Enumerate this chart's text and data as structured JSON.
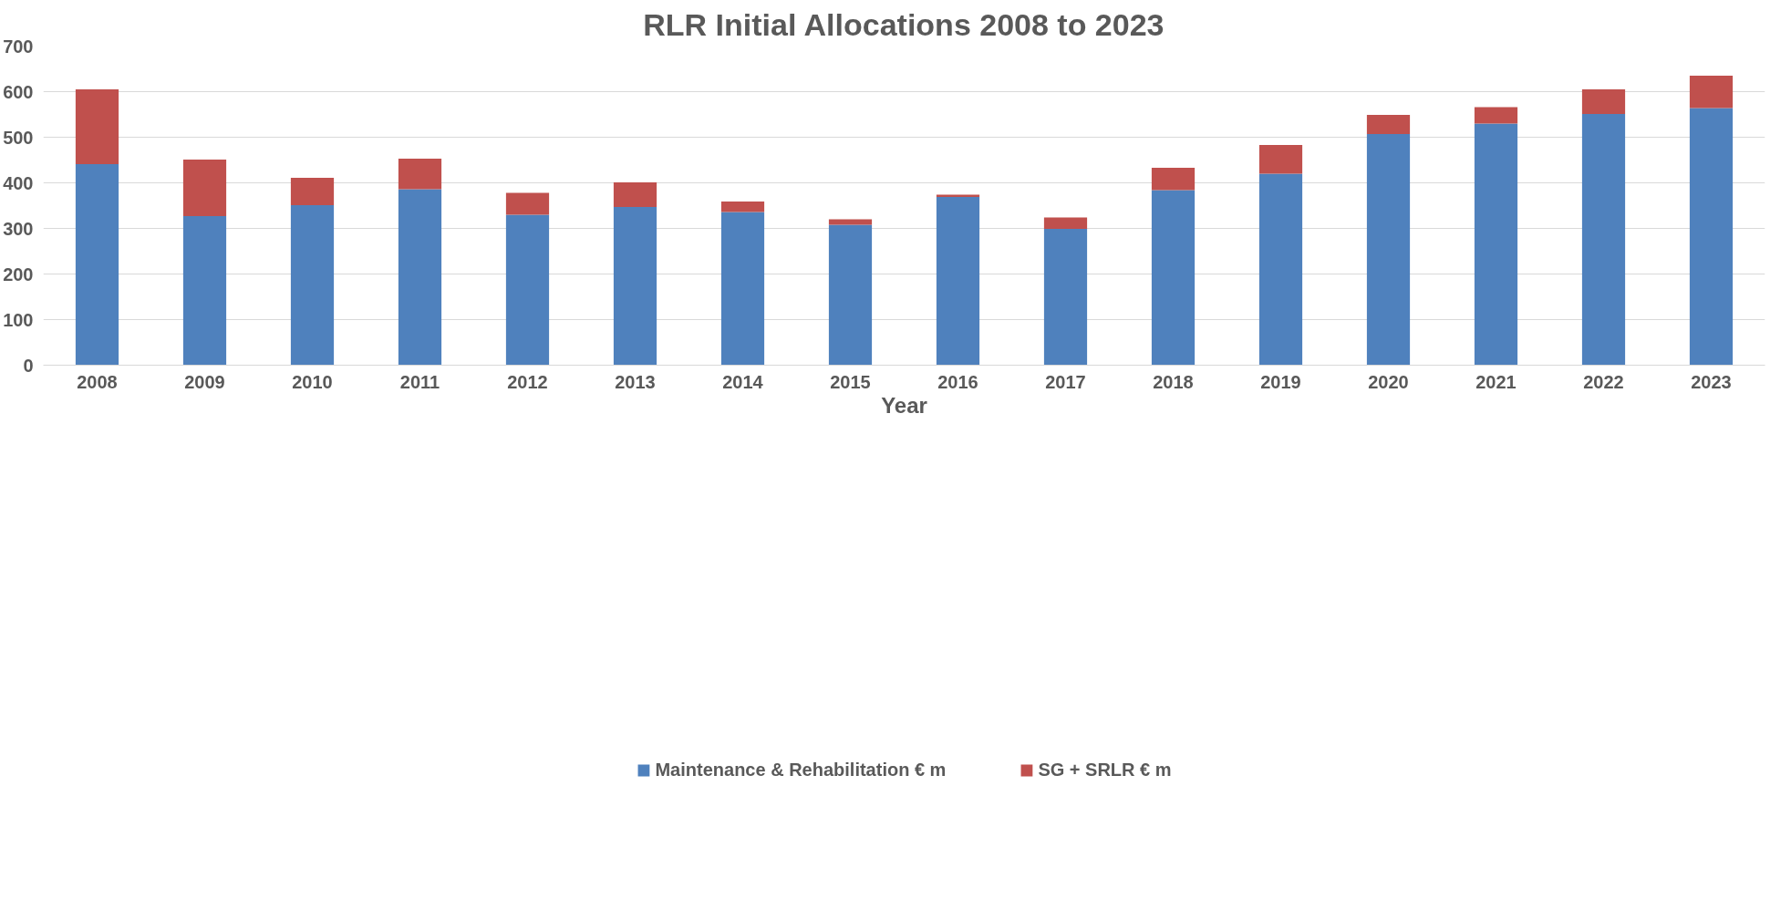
{
  "chart_data": {
    "type": "bar",
    "title": "RLR Initial Allocations 2008 to 2023",
    "xlabel": "Year",
    "categories": [
      "2008",
      "2009",
      "2010",
      "2011",
      "2012",
      "2013",
      "2014",
      "2015",
      "2016",
      "2017",
      "2018",
      "2019",
      "2020",
      "2021",
      "2022",
      "2023"
    ],
    "series": [
      {
        "name": "Maintenance & Rehabilitation € m",
        "color": "#4f81bd",
        "values": [
          441,
          327,
          351,
          386,
          330,
          347,
          336,
          308,
          369,
          299,
          384,
          420,
          507,
          530,
          551,
          564
        ]
      },
      {
        "name": "SG + SRLR € m",
        "color": "#c0504d",
        "values": [
          164,
          124,
          60,
          67,
          48,
          54,
          23,
          12,
          5,
          25,
          49,
          63,
          42,
          36,
          54,
          71
        ]
      }
    ],
    "stacked": true,
    "ylim": [
      0,
      700
    ],
    "yticks": [
      0,
      100,
      200,
      300,
      400,
      500,
      600,
      700
    ],
    "grid": "y",
    "legend": "bottom"
  }
}
